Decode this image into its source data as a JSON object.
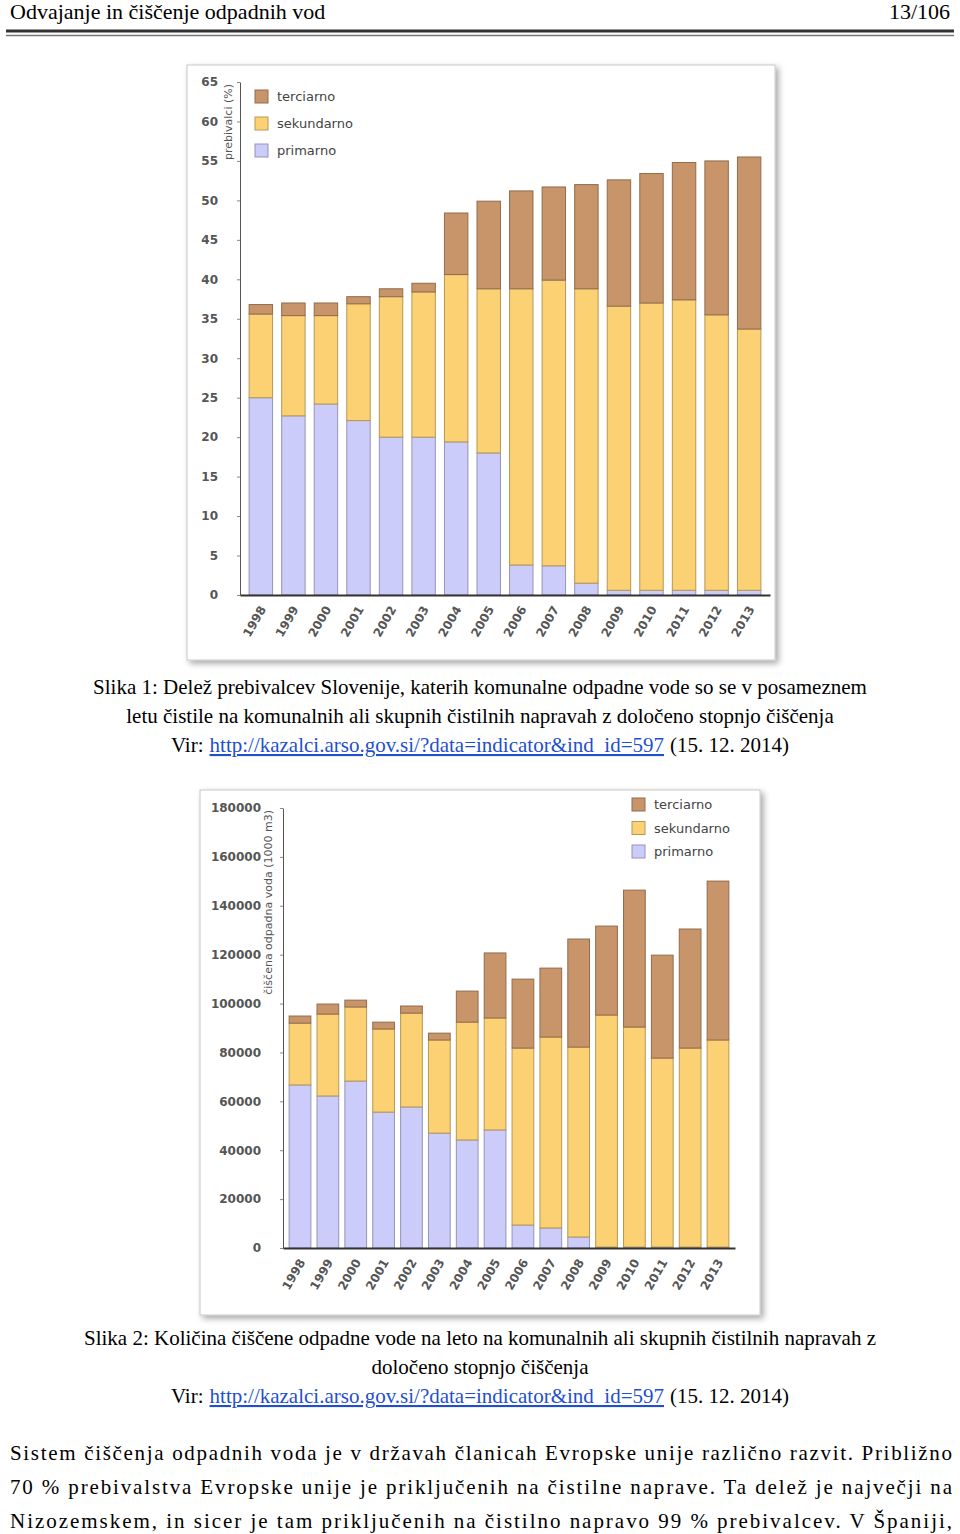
{
  "document": {
    "header": {
      "title": "Odvajanje in čiščenje odpadnih vod",
      "page": "13/106"
    },
    "figures": [
      {
        "caption": [
          "Slika 1: Delež prebivalcev Slovenije, katerih komunalne odpadne vode so se v posameznem",
          "letu čistile na komunalnih ali skupnih čistilnih napravah z določeno stopnjo čiščenja"
        ],
        "source": {
          "label": "Vir:",
          "link": "http://kazalci.arso.gov.si/?data=indicator&ind_id=597",
          "date": "(15. 12. 2014)"
        }
      },
      {
        "caption": [
          "Slika 2: Količina čiščene odpadne vode na leto na komunalnih ali skupnih čistilnih napravah z",
          "določeno stopnjo čiščenja"
        ],
        "source": {
          "label": "Vir:",
          "link": "http://kazalci.arso.gov.si/?data=indicator&ind_id=597",
          "date": "(15. 12. 2014)"
        }
      }
    ],
    "paragraph": [
      "Sistem čiščenja odpadnih voda je v državah članicah Evropske unije različno razvit. Približno",
      "70 % prebivalstva Evropske unije je priključenih na čistilne naprave. Ta delež je največji na",
      "Nizozemskem, in sicer je tam priključenih na čistilno napravo 99 % prebivalcev. V Španiji,"
    ]
  },
  "chart_data": [
    {
      "type": "bar",
      "stacked": true,
      "y_label": "prebivalci (%)",
      "categories": [
        "1998",
        "1999",
        "2000",
        "2001",
        "2002",
        "2003",
        "2004",
        "2005",
        "2006",
        "2007",
        "2008",
        "2009",
        "2010",
        "2011",
        "2012",
        "2013"
      ],
      "series": [
        {
          "name": "primarno",
          "color": "#ccccfa",
          "values": [
            25.0,
            22.7,
            24.2,
            22.1,
            20.0,
            20.0,
            19.4,
            18.0,
            3.8,
            3.7,
            1.5,
            0.6,
            0.6,
            0.6,
            0.6,
            0.6
          ]
        },
        {
          "name": "sekundarno",
          "color": "#fbd174",
          "values": [
            10.6,
            12.7,
            11.2,
            14.8,
            17.8,
            18.4,
            21.2,
            20.8,
            35.0,
            36.2,
            37.3,
            36.0,
            36.4,
            36.8,
            34.9,
            33.1
          ]
        },
        {
          "name": "terciarno",
          "color": "#c8956a",
          "values": [
            1.2,
            1.6,
            1.6,
            0.9,
            1.0,
            1.1,
            7.8,
            11.1,
            12.4,
            11.8,
            13.2,
            16.0,
            16.4,
            17.4,
            19.5,
            21.8
          ]
        }
      ],
      "ylim": [
        0,
        65
      ],
      "yticks": [
        0,
        5,
        10,
        15,
        20,
        25,
        30,
        35,
        40,
        45,
        50,
        55,
        60,
        65
      ],
      "grid": false,
      "legend": "top-left"
    },
    {
      "type": "bar",
      "stacked": true,
      "y_label": "čiščena odpadna voda (1000 m3)",
      "categories": [
        "1998",
        "1999",
        "2000",
        "2001",
        "2002",
        "2003",
        "2004",
        "2005",
        "2006",
        "2007",
        "2008",
        "2009",
        "2010",
        "2011",
        "2012",
        "2013"
      ],
      "series": [
        {
          "name": "primarno",
          "color": "#ccccfa",
          "values": [
            66700,
            62200,
            68300,
            55600,
            57700,
            47000,
            44200,
            48300,
            9400,
            8200,
            4500,
            400,
            400,
            400,
            400,
            400
          ]
        },
        {
          "name": "sekundarno",
          "color": "#fbd174",
          "values": [
            25300,
            33500,
            30300,
            34000,
            38400,
            38100,
            48200,
            45800,
            72400,
            78100,
            77700,
            94900,
            90000,
            77300,
            81400,
            84700
          ]
        },
        {
          "name": "terciarno",
          "color": "#c8956a",
          "values": [
            2900,
            4100,
            2800,
            2800,
            2900,
            2800,
            12700,
            26600,
            28200,
            28200,
            44200,
            36400,
            56000,
            42100,
            48700,
            65000
          ]
        }
      ],
      "ylim": [
        0,
        180000
      ],
      "yticks": [
        0,
        20000,
        40000,
        60000,
        80000,
        100000,
        120000,
        140000,
        160000,
        180000
      ],
      "grid": false,
      "legend": "top-right"
    }
  ]
}
